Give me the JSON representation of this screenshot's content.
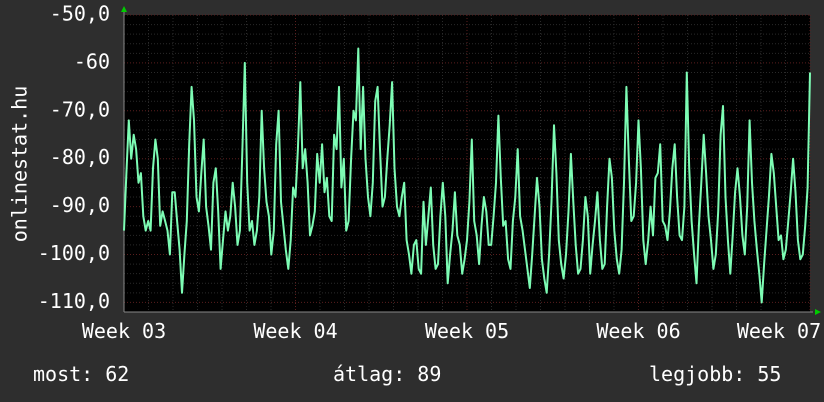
{
  "side_label": "onlinestat.hu",
  "colors": {
    "background": "#2e2e2e",
    "plot_background": "#000000",
    "line": "#7dfcb4",
    "grid_major": "#5a1e1e",
    "grid_minor": "#2a2a2a",
    "axis_arrow": "#00cc00",
    "text": "#ffffff"
  },
  "chart_data": {
    "type": "line",
    "x_tick_labels": [
      "Week 03",
      "Week 04",
      "Week 05",
      "Week 06",
      "Week 07"
    ],
    "y_tick_labels": [
      "-50,0",
      "-60",
      "-70,0",
      "-80,0",
      "-90,0",
      "-100,0",
      "-110,0"
    ],
    "y_tick_values": [
      -50,
      -60,
      -70,
      -80,
      -90,
      -100,
      -110
    ],
    "ylim": [
      -112,
      -50
    ],
    "xlim": [
      0,
      4
    ],
    "grid": true,
    "series": [
      {
        "values": [
          -95,
          -83,
          -72,
          -80,
          -75,
          -78,
          -85,
          -83,
          -92,
          -95,
          -93,
          -95,
          -82,
          -76,
          -80,
          -94,
          -91,
          -93,
          -95,
          -100,
          -87,
          -87,
          -93,
          -99,
          -108,
          -100,
          -93,
          -77,
          -65,
          -72,
          -88,
          -91,
          -83,
          -76,
          -90,
          -94,
          -99,
          -85,
          -82,
          -91,
          -103,
          -97,
          -91,
          -95,
          -92,
          -85,
          -90,
          -98,
          -95,
          -78,
          -60,
          -85,
          -95,
          -93,
          -98,
          -95,
          -88,
          -70,
          -82,
          -89,
          -92,
          -100,
          -95,
          -77,
          -70,
          -89,
          -94,
          -99,
          -103,
          -97,
          -86,
          -88,
          -78,
          -64,
          -82,
          -78,
          -85,
          -96,
          -94,
          -91,
          -79,
          -85,
          -77,
          -87,
          -84,
          -92,
          -93,
          -75,
          -78,
          -65,
          -86,
          -80,
          -95,
          -93,
          -80,
          -70,
          -72,
          -57,
          -78,
          -65,
          -80,
          -88,
          -92,
          -85,
          -68,
          -65,
          -78,
          -90,
          -88,
          -80,
          -73,
          -64,
          -82,
          -90,
          -92,
          -88,
          -85,
          -97,
          -100,
          -104,
          -98,
          -97,
          -103,
          -104,
          -89,
          -98,
          -92,
          -86,
          -98,
          -103,
          -102,
          -92,
          -85,
          -92,
          -106,
          -100,
          -95,
          -87,
          -96,
          -98,
          -104,
          -101,
          -97,
          -89,
          -76,
          -93,
          -96,
          -102,
          -94,
          -88,
          -91,
          -98,
          -98,
          -92,
          -85,
          -71,
          -84,
          -94,
          -93,
          -101,
          -103,
          -93,
          -88,
          -78,
          -92,
          -95,
          -99,
          -103,
          -107,
          -100,
          -92,
          -84,
          -90,
          -101,
          -105,
          -108,
          -100,
          -89,
          -73,
          -83,
          -97,
          -102,
          -105,
          -100,
          -91,
          -79,
          -89,
          -98,
          -104,
          -103,
          -97,
          -88,
          -92,
          -104,
          -98,
          -93,
          -87,
          -97,
          -103,
          -102,
          -90,
          -80,
          -84,
          -95,
          -101,
          -104,
          -99,
          -85,
          -65,
          -80,
          -93,
          -92,
          -85,
          -72,
          -82,
          -97,
          -102,
          -97,
          -90,
          -96,
          -84,
          -83,
          -77,
          -93,
          -94,
          -97,
          -91,
          -82,
          -77,
          -88,
          -96,
          -97,
          -90,
          -62,
          -82,
          -93,
          -100,
          -106,
          -94,
          -85,
          -75,
          -83,
          -92,
          -97,
          -103,
          -100,
          -91,
          -75,
          -69,
          -88,
          -97,
          -104,
          -96,
          -87,
          -82,
          -88,
          -96,
          -100,
          -90,
          -72,
          -85,
          -93,
          -99,
          -104,
          -110,
          -102,
          -95,
          -88,
          -79,
          -83,
          -90,
          -97,
          -96,
          -101,
          -99,
          -93,
          -87,
          -80,
          -87,
          -97,
          -101,
          -100,
          -94,
          -86,
          -62
        ]
      }
    ]
  },
  "stats": {
    "now": "most: 62",
    "avg": "átlag: 89",
    "best": "legjobb: 55"
  }
}
